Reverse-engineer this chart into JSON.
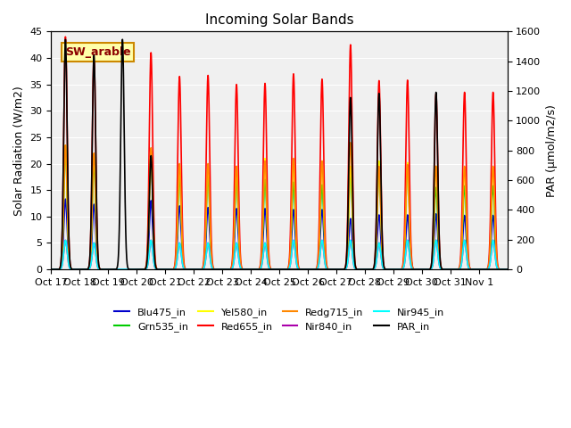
{
  "title": "Incoming Solar Bands",
  "ylabel_left": "Solar Radiation (W/m2)",
  "ylabel_right": "PAR (μmol/m2/s)",
  "ylim_left": [
    0,
    45
  ],
  "ylim_right": [
    0,
    1600
  ],
  "background_color": "#f0f0f0",
  "annotation_text": "SW_arable",
  "annotation_color": "#8B0000",
  "annotation_bg": "#ffffaa",
  "annotation_border": "#cc8800",
  "series": [
    {
      "name": "Blu475_in",
      "color": "#0000cc",
      "lw": 1.2
    },
    {
      "name": "Grn535_in",
      "color": "#00cc00",
      "lw": 1.2
    },
    {
      "name": "Yel580_in",
      "color": "#ffff00",
      "lw": 1.2
    },
    {
      "name": "Red655_in",
      "color": "#ff0000",
      "lw": 1.2
    },
    {
      "name": "Redg715_in",
      "color": "#ff8800",
      "lw": 1.2
    },
    {
      "name": "Nir840_in",
      "color": "#aa00aa",
      "lw": 1.2
    },
    {
      "name": "Nir945_in",
      "color": "#00ffff",
      "lw": 1.2
    },
    {
      "name": "PAR_in",
      "color": "#000000",
      "lw": 1.2
    }
  ],
  "xtick_labels": [
    "Oct 17",
    "Oct 18",
    "Oct 19",
    "Oct 20",
    "Oct 21",
    "Oct 22",
    "Oct 23",
    "Oct 24",
    "Oct 25",
    "Oct 26",
    "Oct 27",
    "Oct 28",
    "Oct 29",
    "Oct 30",
    "Oct 31",
    "Nov 1"
  ],
  "n_days": 16,
  "peaks": {
    "Blu475_in": [
      13.3,
      12.3,
      0.0,
      13.0,
      12.0,
      11.7,
      11.5,
      11.5,
      11.3,
      11.3,
      9.6,
      10.3,
      10.3,
      10.5,
      10.2,
      10.2
    ],
    "Grn535_in": [
      22.5,
      20.0,
      0.0,
      22.5,
      17.5,
      17.5,
      17.0,
      17.0,
      16.5,
      16.0,
      19.0,
      19.5,
      19.5,
      15.5,
      15.8,
      15.8
    ],
    "Yel580_in": [
      23.5,
      21.5,
      0.0,
      22.5,
      19.5,
      19.5,
      19.0,
      21.0,
      20.8,
      20.5,
      19.5,
      20.5,
      20.2,
      19.5,
      19.0,
      19.0
    ],
    "Red655_in": [
      44.0,
      40.5,
      0.0,
      41.0,
      36.5,
      36.7,
      35.0,
      35.2,
      37.0,
      36.0,
      42.5,
      35.7,
      35.8,
      33.2,
      33.5,
      33.5
    ],
    "Redg715_in": [
      23.5,
      22.0,
      0.0,
      23.0,
      20.0,
      20.0,
      19.5,
      20.5,
      21.0,
      20.5,
      24.0,
      19.5,
      19.8,
      19.5,
      19.5,
      19.5
    ],
    "Nir840_in": [
      5.5,
      5.0,
      0.0,
      5.5,
      5.0,
      5.0,
      5.0,
      5.0,
      5.5,
      5.5,
      5.5,
      5.0,
      5.5,
      5.5,
      5.5,
      5.5
    ],
    "Nir945_in": [
      5.5,
      5.0,
      0.0,
      5.5,
      5.0,
      5.0,
      5.0,
      5.0,
      5.5,
      5.5,
      5.5,
      5.0,
      5.5,
      5.5,
      5.5,
      5.5
    ],
    "PAR_in": [
      43.5,
      40.5,
      43.5,
      21.5,
      0.0,
      0.0,
      0.0,
      0.0,
      0.0,
      0.0,
      32.5,
      33.3,
      0.0,
      33.5,
      0.0,
      0.0
    ]
  }
}
